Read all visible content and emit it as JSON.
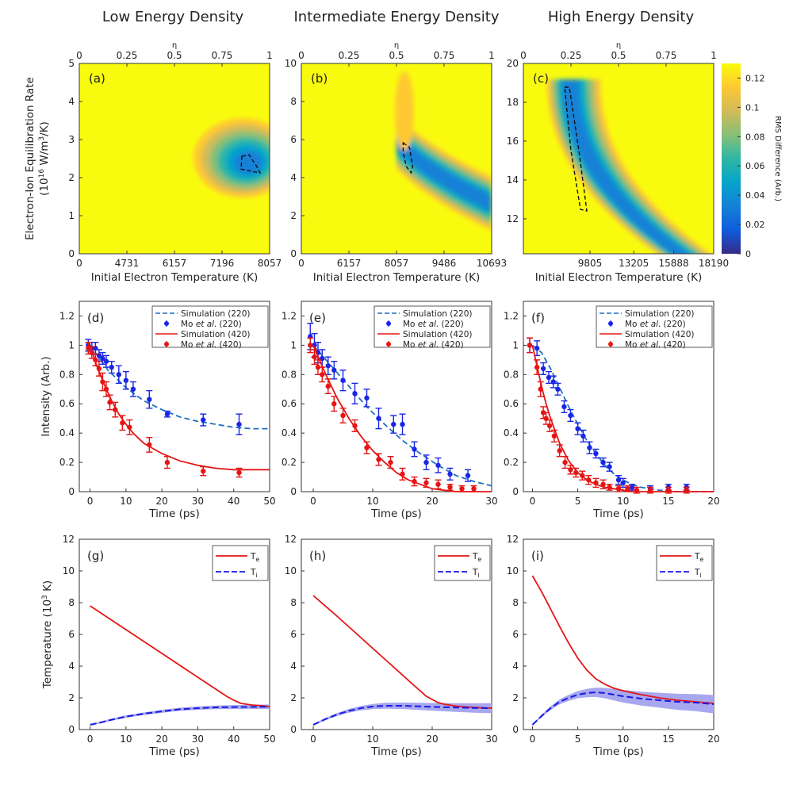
{
  "column_titles": [
    "Low Energy Density",
    "Intermediate Energy Density",
    "High Energy Density"
  ],
  "colors": {
    "sim220": "#1f6fbf",
    "exp220": "#1a26e6",
    "sim420": "#e61414",
    "exp420": "#e61414",
    "te": "#e61414",
    "ti": "#1a1ae6",
    "ti_band": "#a8a8f0"
  },
  "colorbar": {
    "label": "RMS Difference (Arb.)",
    "ticks": [
      "0",
      "0.02",
      "0.04",
      "0.06",
      "0.08",
      "0.1",
      "0.12"
    ],
    "stops": [
      "#352a87",
      "#0f5cdd",
      "#1481d6",
      "#06a4ca",
      "#2eb7a4",
      "#87bf77",
      "#d1bb59",
      "#fec832",
      "#f9fb0e"
    ]
  },
  "chart_data": [
    {
      "type": "heatmap",
      "panel": "(a)",
      "xlabel": "Initial Electron Temperature (K)",
      "ylabel": "Electron-Ion Equilibration Rate",
      "ylabel2": "(10",
      "ylabel_exp": "16",
      "ylabel_unit": " W/m",
      "ylabel_exp2": "3",
      "ylabel_end": "/K)",
      "top_label": "η",
      "x_ticks": [
        "0",
        "4731",
        "6157",
        "7196",
        "8057"
      ],
      "top_ticks": [
        "0",
        "0.25",
        "0.5",
        "0.75",
        "1"
      ],
      "y_ticks": [
        "0",
        "1",
        "2",
        "3",
        "4",
        "5"
      ],
      "ylim": [
        0,
        5
      ],
      "minimum": {
        "eta": 0.9,
        "rate": 2.35
      }
    },
    {
      "type": "heatmap",
      "panel": "(b)",
      "xlabel": "Initial Electron Temperature (K)",
      "top_label": "η",
      "x_ticks": [
        "0",
        "6157",
        "8057",
        "9486",
        "10693"
      ],
      "top_ticks": [
        "0",
        "0.25",
        "0.5",
        "0.75",
        "1"
      ],
      "y_ticks": [
        "0",
        "2",
        "4",
        "6",
        "8",
        "10"
      ],
      "ylim": [
        0,
        10
      ],
      "minimum": {
        "eta": 0.56,
        "rate": 5.0
      }
    },
    {
      "type": "heatmap",
      "panel": "(c)",
      "xlabel": "Initial Electron Temperature (K)",
      "top_label": "η",
      "x_ticks": [
        "9805",
        "13205",
        "15888",
        "18190"
      ],
      "top_ticks": [
        "0",
        "0.25",
        "0.5",
        "0.75",
        "1"
      ],
      "y_ticks": [
        "12",
        "14",
        "16",
        "18",
        "20"
      ],
      "ylim": [
        10.2,
        20
      ],
      "minimum": {
        "eta": 0.25,
        "rate": 15.5
      }
    },
    {
      "type": "line",
      "panel": "(d)",
      "xlabel": "Time (ps)",
      "ylabel": "Intensity (Arb.)",
      "xlim": [
        -3,
        50
      ],
      "ylim": [
        0,
        1.3
      ],
      "x_ticks": [
        "0",
        "10",
        "20",
        "30",
        "40",
        "50"
      ],
      "y_ticks": [
        "0",
        "0.2",
        "0.4",
        "0.6",
        "0.8",
        "1",
        "1.2"
      ],
      "legend": [
        "Simulation (220)",
        "Mo ",
        "et al.",
        "(220)",
        "Simulation (420)",
        "Mo ",
        "et al.",
        "(420)"
      ],
      "series": [
        {
          "name": "Simulation (220)",
          "x": [
            0,
            5,
            10,
            15,
            20,
            25,
            30,
            35,
            40,
            45,
            50
          ],
          "y": [
            1.0,
            0.83,
            0.71,
            0.62,
            0.56,
            0.51,
            0.48,
            0.46,
            0.44,
            0.43,
            0.43
          ]
        },
        {
          "name": "Mo et al. (220)",
          "x": [
            -0.5,
            0.5,
            1.5,
            2.5,
            3.5,
            4.5,
            6,
            8,
            10,
            12,
            16.5,
            21.5,
            31.5,
            41.5
          ],
          "y": [
            1.0,
            0.98,
            0.98,
            0.93,
            0.91,
            0.89,
            0.85,
            0.8,
            0.76,
            0.7,
            0.63,
            0.53,
            0.49,
            0.46
          ],
          "err": [
            0.04,
            0.04,
            0.04,
            0.04,
            0.04,
            0.04,
            0.04,
            0.06,
            0.06,
            0.05,
            0.06,
            0.02,
            0.04,
            0.07
          ]
        },
        {
          "name": "Simulation (420)",
          "x": [
            0,
            2,
            4,
            6,
            8,
            10,
            12,
            15,
            20,
            25,
            30,
            35,
            40,
            45,
            50
          ],
          "y": [
            1.0,
            0.85,
            0.73,
            0.62,
            0.53,
            0.46,
            0.4,
            0.33,
            0.26,
            0.21,
            0.18,
            0.16,
            0.15,
            0.15,
            0.15
          ]
        },
        {
          "name": "Mo et al. (420)",
          "x": [
            -0.5,
            0.5,
            1.5,
            2.5,
            3.5,
            4.5,
            5.5,
            7,
            9,
            11,
            16.5,
            21.5,
            31.5,
            41.5
          ],
          "y": [
            0.98,
            0.95,
            0.9,
            0.84,
            0.75,
            0.7,
            0.61,
            0.56,
            0.47,
            0.44,
            0.32,
            0.2,
            0.14,
            0.13
          ],
          "err": [
            0.04,
            0.04,
            0.04,
            0.05,
            0.06,
            0.05,
            0.05,
            0.05,
            0.05,
            0.05,
            0.05,
            0.04,
            0.03,
            0.03
          ]
        }
      ]
    },
    {
      "type": "line",
      "panel": "(e)",
      "xlabel": "Time (ps)",
      "xlim": [
        -2,
        30
      ],
      "ylim": [
        0,
        1.3
      ],
      "x_ticks": [
        "0",
        "10",
        "20",
        "30"
      ],
      "y_ticks": [
        "0",
        "0.2",
        "0.4",
        "0.6",
        "0.8",
        "1",
        "1.2"
      ],
      "legend": [
        "Simulation (220)",
        "Mo ",
        "et al.",
        "(220)",
        "Simulation (420)",
        "Mo ",
        "et al.",
        "(420)"
      ],
      "series": [
        {
          "name": "Simulation (220)",
          "x": [
            0,
            3,
            6,
            9,
            12,
            15,
            18,
            21,
            24,
            27,
            30
          ],
          "y": [
            1.0,
            0.86,
            0.72,
            0.58,
            0.46,
            0.35,
            0.26,
            0.18,
            0.11,
            0.07,
            0.04
          ]
        },
        {
          "name": "Mo et al. (220)",
          "x": [
            -0.5,
            0.2,
            0.8,
            1.5,
            2.5,
            3.5,
            5,
            7,
            9,
            11,
            13.5,
            15,
            17,
            19,
            21,
            23,
            26
          ],
          "y": [
            1.06,
            1.0,
            0.95,
            0.91,
            0.86,
            0.83,
            0.76,
            0.67,
            0.64,
            0.5,
            0.46,
            0.46,
            0.29,
            0.2,
            0.18,
            0.12,
            0.11
          ],
          "err": [
            0.09,
            0.08,
            0.07,
            0.06,
            0.06,
            0.06,
            0.07,
            0.07,
            0.06,
            0.07,
            0.06,
            0.07,
            0.05,
            0.05,
            0.05,
            0.04,
            0.04
          ]
        },
        {
          "name": "Simulation (420)",
          "x": [
            0,
            2,
            4,
            6,
            8,
            10,
            12,
            14,
            16,
            18,
            20,
            22,
            24,
            26,
            28,
            30
          ],
          "y": [
            1.0,
            0.81,
            0.64,
            0.5,
            0.38,
            0.28,
            0.2,
            0.13,
            0.08,
            0.05,
            0.02,
            0.01,
            0.0,
            0.0,
            0.0,
            0.0
          ]
        },
        {
          "name": "Mo et al. (420)",
          "x": [
            -0.5,
            0.2,
            0.8,
            1.5,
            2.5,
            3.5,
            5,
            7,
            9,
            11,
            13,
            15,
            17,
            19,
            21,
            23,
            25,
            27
          ],
          "y": [
            1.0,
            0.92,
            0.85,
            0.8,
            0.72,
            0.6,
            0.52,
            0.45,
            0.3,
            0.22,
            0.2,
            0.12,
            0.07,
            0.06,
            0.05,
            0.03,
            0.02,
            0.02
          ],
          "err": [
            0.05,
            0.05,
            0.05,
            0.05,
            0.05,
            0.05,
            0.05,
            0.04,
            0.04,
            0.04,
            0.04,
            0.04,
            0.03,
            0.03,
            0.03,
            0.02,
            0.02,
            0.02
          ]
        }
      ]
    },
    {
      "type": "line",
      "panel": "(f)",
      "xlabel": "Time (ps)",
      "xlim": [
        -1,
        20
      ],
      "ylim": [
        0,
        1.3
      ],
      "x_ticks": [
        "0",
        "5",
        "10",
        "15",
        "20"
      ],
      "y_ticks": [
        "0",
        "0.2",
        "0.4",
        "0.6",
        "0.8",
        "1",
        "1.2"
      ],
      "legend": [
        "Simulation (220)",
        "Mo ",
        "et al.",
        "(220)",
        "Simulation (420)",
        "Mo ",
        "et al.",
        "(420)"
      ],
      "series": [
        {
          "name": "Simulation (220)",
          "x": [
            0,
            1,
            2,
            3,
            4,
            5,
            6,
            7,
            8,
            9,
            10,
            11,
            12,
            14,
            16,
            18,
            20
          ],
          "y": [
            1.0,
            0.95,
            0.84,
            0.71,
            0.58,
            0.46,
            0.35,
            0.26,
            0.18,
            0.12,
            0.08,
            0.05,
            0.03,
            0.01,
            0.0,
            0.0,
            0.0
          ]
        },
        {
          "name": "Mo et al. (220)",
          "x": [
            -0.3,
            0.5,
            1.2,
            1.8,
            2.3,
            2.8,
            3.5,
            4.2,
            5,
            5.6,
            6.3,
            7,
            7.8,
            8.5,
            9.5,
            10,
            11,
            13,
            15,
            17
          ],
          "y": [
            1.0,
            0.98,
            0.84,
            0.78,
            0.75,
            0.7,
            0.58,
            0.52,
            0.43,
            0.38,
            0.3,
            0.26,
            0.2,
            0.17,
            0.08,
            0.06,
            0.03,
            0.02,
            0.03,
            0.03
          ],
          "err": [
            0.05,
            0.05,
            0.04,
            0.04,
            0.04,
            0.04,
            0.04,
            0.04,
            0.04,
            0.04,
            0.04,
            0.03,
            0.03,
            0.03,
            0.03,
            0.03,
            0.02,
            0.02,
            0.02,
            0.02
          ]
        },
        {
          "name": "Simulation (420)",
          "x": [
            0,
            0.5,
            1,
            1.5,
            2,
            3,
            4,
            5,
            6,
            7,
            8,
            9,
            10,
            11,
            12,
            14,
            16,
            18,
            20
          ],
          "y": [
            1.0,
            0.86,
            0.72,
            0.6,
            0.5,
            0.33,
            0.21,
            0.13,
            0.08,
            0.05,
            0.03,
            0.02,
            0.01,
            0.0,
            0.0,
            0.0,
            0.0,
            0.0,
            0.0
          ]
        },
        {
          "name": "Mo et al. (420)",
          "x": [
            -0.3,
            0.5,
            0.9,
            1.2,
            1.5,
            1.9,
            2.4,
            3,
            3.6,
            4.2,
            4.8,
            5.5,
            6.2,
            7,
            7.8,
            8.5,
            9.5,
            10.5,
            11.5,
            13,
            15,
            17
          ],
          "y": [
            1.0,
            0.85,
            0.7,
            0.54,
            0.5,
            0.45,
            0.38,
            0.28,
            0.2,
            0.15,
            0.13,
            0.11,
            0.08,
            0.06,
            0.05,
            0.03,
            0.02,
            0.02,
            0.01,
            0.01,
            0.01,
            0.01
          ],
          "err": [
            0.05,
            0.05,
            0.05,
            0.04,
            0.04,
            0.04,
            0.04,
            0.04,
            0.04,
            0.03,
            0.03,
            0.03,
            0.03,
            0.03,
            0.03,
            0.02,
            0.02,
            0.02,
            0.02,
            0.02,
            0.02,
            0.02
          ]
        }
      ]
    },
    {
      "type": "line",
      "panel": "(g)",
      "xlabel": "Time (ps)",
      "ylabel": "Temperature (10",
      "ylabel_exp": "3",
      "ylabel_end": " K)",
      "xlim": [
        -3,
        50
      ],
      "ylim": [
        0,
        12
      ],
      "x_ticks": [
        "0",
        "10",
        "20",
        "30",
        "40",
        "50"
      ],
      "y_ticks": [
        "0",
        "2",
        "4",
        "6",
        "8",
        "10",
        "12"
      ],
      "legend": [
        "T",
        "e",
        "T",
        "i"
      ],
      "series": [
        {
          "name": "Te",
          "x": [
            0,
            5,
            10,
            15,
            20,
            25,
            30,
            35,
            38,
            40,
            42,
            45,
            48,
            50
          ],
          "y": [
            7.8,
            7.05,
            6.3,
            5.55,
            4.8,
            4.05,
            3.3,
            2.55,
            2.1,
            1.85,
            1.65,
            1.55,
            1.5,
            1.45
          ]
        },
        {
          "name": "Ti",
          "x": [
            0,
            3,
            6,
            10,
            15,
            20,
            25,
            30,
            35,
            40,
            45,
            50
          ],
          "y": [
            0.3,
            0.45,
            0.62,
            0.82,
            1.0,
            1.15,
            1.28,
            1.35,
            1.4,
            1.42,
            1.43,
            1.44
          ],
          "band": 0.06
        }
      ]
    },
    {
      "type": "line",
      "panel": "(h)",
      "xlabel": "Time (ps)",
      "xlim": [
        -2,
        30
      ],
      "ylim": [
        0,
        12
      ],
      "x_ticks": [
        "0",
        "10",
        "20",
        "30"
      ],
      "y_ticks": [
        "0",
        "2",
        "4",
        "6",
        "8",
        "10",
        "12"
      ],
      "legend": [
        "T",
        "e",
        "T",
        "i"
      ],
      "series": [
        {
          "name": "Te",
          "x": [
            0,
            4,
            8,
            12,
            16,
            19,
            21,
            22,
            24,
            26,
            28,
            30
          ],
          "y": [
            8.45,
            7.15,
            5.8,
            4.45,
            3.1,
            2.1,
            1.7,
            1.6,
            1.48,
            1.42,
            1.38,
            1.35
          ]
        },
        {
          "name": "Ti",
          "x": [
            0,
            2,
            4,
            6,
            8,
            10,
            12,
            15,
            18,
            21,
            24,
            27,
            30
          ],
          "y": [
            0.3,
            0.65,
            0.95,
            1.18,
            1.35,
            1.45,
            1.5,
            1.5,
            1.46,
            1.42,
            1.39,
            1.36,
            1.35
          ],
          "band": 0.18
        }
      ]
    },
    {
      "type": "line",
      "panel": "(i)",
      "xlabel": "Time (ps)",
      "xlim": [
        -1,
        20
      ],
      "ylim": [
        0,
        12
      ],
      "x_ticks": [
        "0",
        "5",
        "10",
        "15",
        "20"
      ],
      "y_ticks": [
        "0",
        "2",
        "4",
        "6",
        "8",
        "10",
        "12"
      ],
      "legend": [
        "T",
        "e",
        "T",
        "i"
      ],
      "series": [
        {
          "name": "Te",
          "x": [
            0,
            1,
            2,
            3,
            4,
            5,
            6,
            7,
            8,
            9,
            10,
            12,
            14,
            16,
            18,
            20
          ],
          "y": [
            9.7,
            8.7,
            7.6,
            6.5,
            5.45,
            4.5,
            3.75,
            3.2,
            2.85,
            2.6,
            2.45,
            2.2,
            2.0,
            1.85,
            1.75,
            1.65
          ]
        },
        {
          "name": "Ti",
          "x": [
            0,
            1,
            2,
            3,
            4,
            5,
            6,
            7,
            8,
            9,
            10,
            12,
            14,
            16,
            18,
            20
          ],
          "y": [
            0.3,
            0.85,
            1.35,
            1.75,
            2.0,
            2.2,
            2.3,
            2.35,
            2.3,
            2.2,
            2.1,
            1.95,
            1.85,
            1.75,
            1.7,
            1.6
          ],
          "band": 0.35
        }
      ]
    }
  ]
}
